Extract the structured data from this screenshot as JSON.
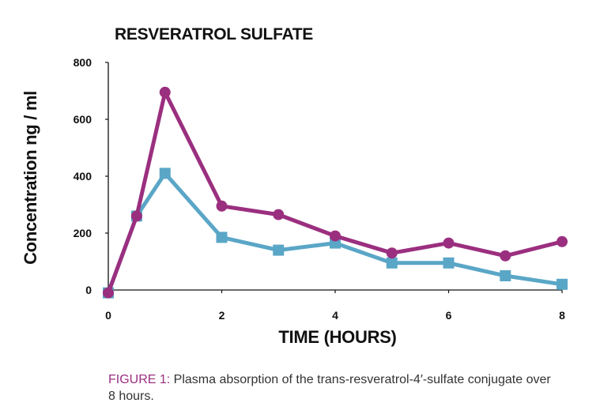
{
  "colors": {
    "series_1": "#9b2f7f",
    "series_2": "#5aa6c7",
    "axis": "#111111",
    "caption_label": "#9b2f7f"
  },
  "chart_data": {
    "type": "line",
    "title": "RESVERATROL SULFATE",
    "xlabel": "TIME (HOURS)",
    "ylabel": "Concentration ng / ml",
    "xlim": [
      0,
      8
    ],
    "ylim": [
      0,
      800
    ],
    "xticks": [
      0,
      2,
      4,
      6,
      8
    ],
    "yticks": [
      0,
      200,
      400,
      600,
      800
    ],
    "grid": false,
    "legend": "none",
    "series": [
      {
        "name": "Series 1 (circles)",
        "marker": "circle",
        "color": "#9b2f7f",
        "x": [
          0,
          0.5,
          1,
          2,
          3,
          4,
          5,
          6,
          7,
          8
        ],
        "y": [
          -10,
          260,
          695,
          295,
          265,
          190,
          130,
          165,
          120,
          170
        ]
      },
      {
        "name": "Series 2 (squares)",
        "marker": "square",
        "color": "#5aa6c7",
        "x": [
          0,
          0.5,
          1,
          2,
          3,
          4,
          5,
          6,
          7,
          8
        ],
        "y": [
          -10,
          260,
          410,
          185,
          140,
          165,
          95,
          95,
          50,
          20
        ]
      }
    ]
  },
  "caption": {
    "label": "FIGURE 1:",
    "text": " Plasma absorption of the trans-resveratrol-4′-sulfate conjugate over 8 hours."
  }
}
